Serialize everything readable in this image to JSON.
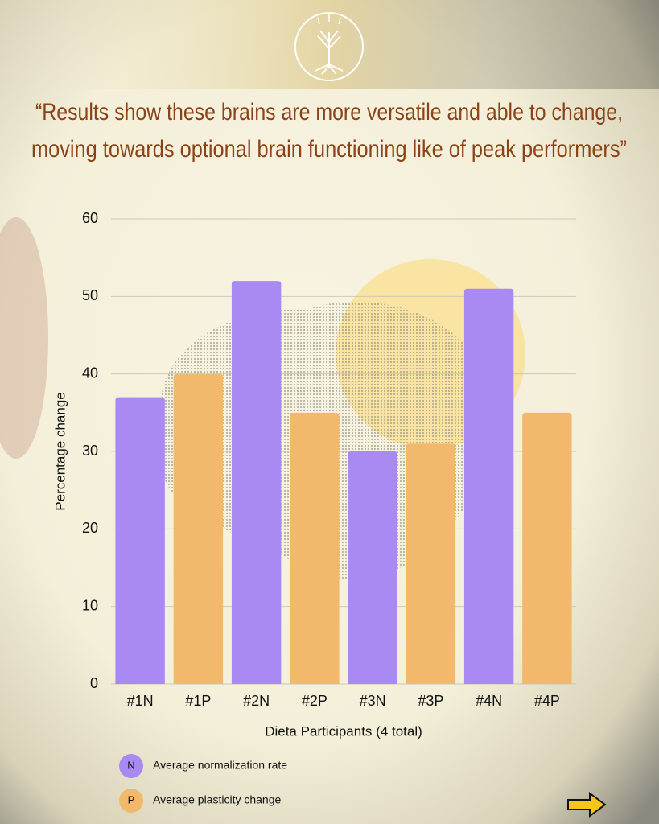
{
  "chart_data": {
    "type": "bar",
    "title": [
      "“Results show these brains are more versatile and able to change,",
      "moving towards optional brain functioning like of peak performers”"
    ],
    "x_label": "Dieta Participants (4 total)",
    "y_label": "Percentage change",
    "categories": [
      "#1N",
      "#1P",
      "#2N",
      "#2P",
      "#3N",
      "#3P",
      "#4N",
      "#4P"
    ],
    "values": [
      37,
      40,
      52,
      35,
      30,
      31,
      51,
      35
    ],
    "colors": [
      "#a98af2",
      "#f2b86c",
      "#a98af2",
      "#f2b86c",
      "#a98af2",
      "#f2b86c",
      "#a98af2",
      "#f2b86c"
    ],
    "ylim": [
      0,
      60
    ],
    "yticks": [
      0,
      10,
      20,
      30,
      40,
      50,
      60
    ],
    "grid": true,
    "legend": [
      {
        "symbol": "N",
        "label": "Average normalization rate",
        "color": "#a98af2"
      },
      {
        "symbol": "P",
        "label": "Average plasticity change",
        "color": "#f2b86c"
      }
    ]
  }
}
